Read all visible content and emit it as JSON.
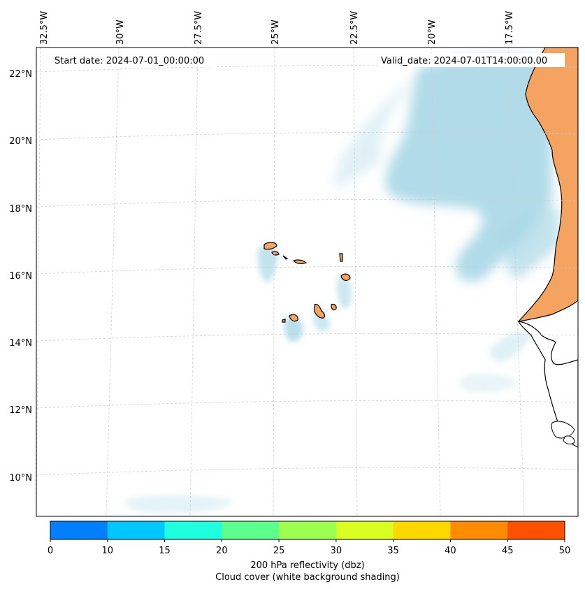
{
  "header": {
    "start_date": "Start date: 2024-07-01_00:00:00",
    "valid_date": "Valid_date: 2024-07-01T14:00:00.00"
  },
  "map": {
    "lon_labels": [
      "32.5°W",
      "30°W",
      "27.5°W",
      "25°W",
      "22.5°W",
      "20°W",
      "17.5°W"
    ],
    "lat_labels": [
      "22°N",
      "20°N",
      "18°N",
      "16°N",
      "14°N",
      "12°N",
      "10°N"
    ],
    "gridlines": "dashed",
    "land_color": "#f4a460",
    "cloud_color": "#a9d8e6",
    "coastline_color": "#000000"
  },
  "colorbar": {
    "ticks": [
      "0",
      "10",
      "15",
      "20",
      "25",
      "30",
      "35",
      "40",
      "45",
      "50"
    ],
    "colors": [
      "#0080ff",
      "#00c8ff",
      "#1effe0",
      "#5cff8c",
      "#9cff50",
      "#d8ff20",
      "#ffd800",
      "#ff8c00",
      "#ff5000"
    ],
    "label": "200 hPa reflectivity (dbz)",
    "sublabel": "Cloud cover (white background shading)"
  }
}
